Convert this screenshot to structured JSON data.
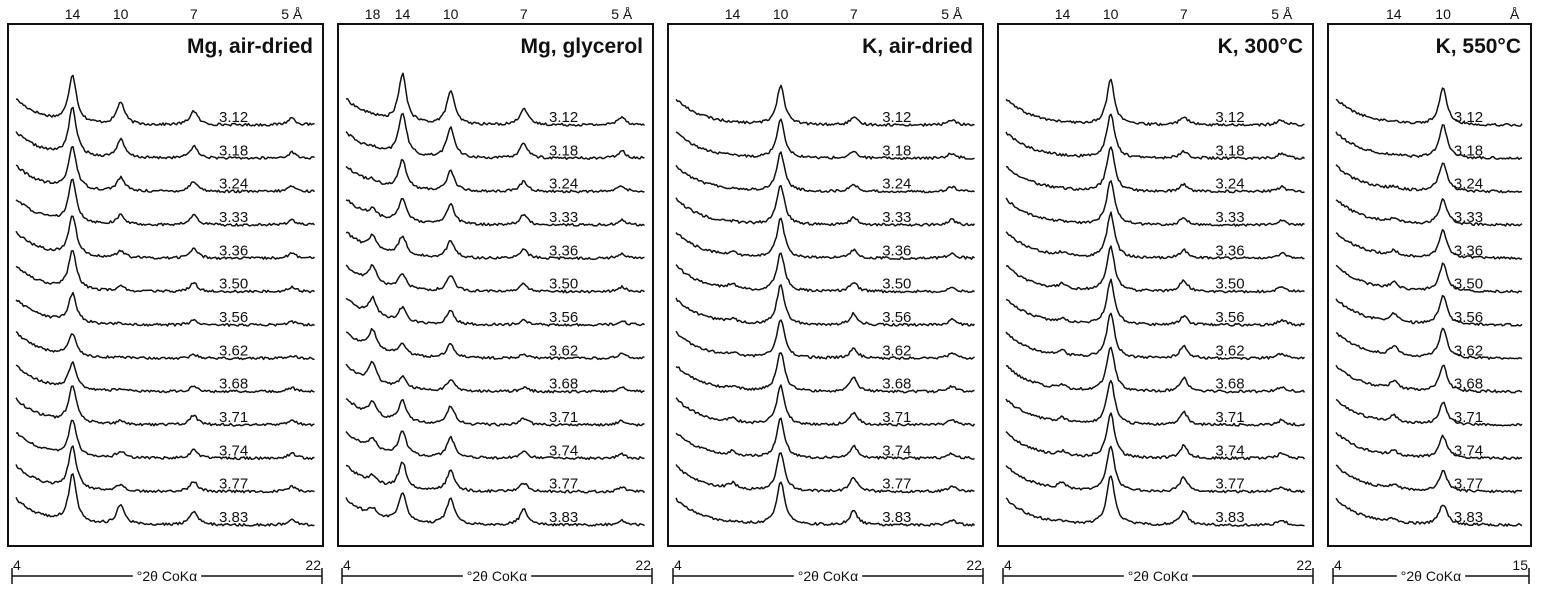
{
  "chart_data": [
    {
      "type": "line",
      "title": "Mg, air-dried",
      "xlabel": "°2θ CoKα",
      "xlim": [
        4,
        22
      ],
      "x_ticks": [
        "4",
        "22"
      ],
      "d_spacing_ticks": [
        {
          "label": "14",
          "x": 7.4
        },
        {
          "label": "10",
          "x": 10.3
        },
        {
          "label": "7",
          "x": 14.7
        }
      ],
      "angstrom_label": "5 Å",
      "angstrom_x": 20.6,
      "peaks": [
        {
          "x": 7.4,
          "h": 1.7
        },
        {
          "x": 10.3,
          "h": 0.8
        },
        {
          "x": 14.7,
          "h": 0.5
        },
        {
          "x": 20.6,
          "h": 0.25
        }
      ],
      "series": [
        {
          "name": "3.12",
          "rel": [
            1.0,
            1.0,
            1.0,
            1.0
          ]
        },
        {
          "name": "3.18",
          "rel": [
            1.0,
            0.8,
            0.85,
            0.85
          ]
        },
        {
          "name": "3.24",
          "rel": [
            0.9,
            0.6,
            0.75,
            0.8
          ]
        },
        {
          "name": "3.33",
          "rel": [
            0.9,
            0.4,
            0.7,
            0.75
          ]
        },
        {
          "name": "3.36",
          "rel": [
            0.85,
            0.3,
            0.7,
            0.7
          ]
        },
        {
          "name": "3.50",
          "rel": [
            0.8,
            0.2,
            0.6,
            0.7
          ]
        },
        {
          "name": "3.56",
          "rel": [
            0.6,
            0.05,
            0.35,
            0.5
          ]
        },
        {
          "name": "3.62",
          "rel": [
            0.45,
            0.05,
            0.25,
            0.4
          ]
        },
        {
          "name": "3.68",
          "rel": [
            0.55,
            0.1,
            0.35,
            0.55
          ]
        },
        {
          "name": "3.71",
          "rel": [
            0.75,
            0.15,
            0.7,
            0.7
          ]
        },
        {
          "name": "3.74",
          "rel": [
            0.75,
            0.3,
            0.6,
            0.7
          ]
        },
        {
          "name": "3.77",
          "rel": [
            0.9,
            0.3,
            0.75,
            0.7
          ]
        },
        {
          "name": "3.83",
          "rel": [
            1.0,
            0.9,
            1.0,
            0.7
          ]
        }
      ]
    },
    {
      "type": "line",
      "title": "Mg, glycerol",
      "xlabel": "°2θ CoKα",
      "xlim": [
        4,
        22
      ],
      "x_ticks": [
        "4",
        "22"
      ],
      "d_spacing_ticks": [
        {
          "label": "18",
          "x": 5.6
        },
        {
          "label": "14",
          "x": 7.4
        },
        {
          "label": "10",
          "x": 10.3
        },
        {
          "label": "7",
          "x": 14.7
        }
      ],
      "angstrom_label": "5 Å",
      "angstrom_x": 20.6,
      "peaks": [
        {
          "x": 5.6,
          "h": 0.8
        },
        {
          "x": 7.4,
          "h": 1.7
        },
        {
          "x": 10.3,
          "h": 1.2
        },
        {
          "x": 14.7,
          "h": 0.6
        },
        {
          "x": 20.6,
          "h": 0.3
        }
      ],
      "series": [
        {
          "name": "3.12",
          "rel": [
            0.05,
            1.0,
            1.0,
            1.0,
            1.0
          ]
        },
        {
          "name": "3.18",
          "rel": [
            0.1,
            0.9,
            0.9,
            0.9,
            0.9
          ]
        },
        {
          "name": "3.24",
          "rel": [
            0.15,
            0.6,
            0.6,
            0.6,
            0.7
          ]
        },
        {
          "name": "3.33",
          "rel": [
            0.3,
            0.5,
            0.6,
            0.6,
            0.6
          ]
        },
        {
          "name": "3.36",
          "rel": [
            0.6,
            0.4,
            0.5,
            0.5,
            0.6
          ]
        },
        {
          "name": "3.50",
          "rel": [
            0.75,
            0.3,
            0.45,
            0.45,
            0.55
          ]
        },
        {
          "name": "3.56",
          "rel": [
            0.8,
            0.3,
            0.4,
            0.3,
            0.5
          ]
        },
        {
          "name": "3.62",
          "rel": [
            0.85,
            0.25,
            0.4,
            0.25,
            0.5
          ]
        },
        {
          "name": "3.68",
          "rel": [
            0.9,
            0.25,
            0.35,
            0.25,
            0.5
          ]
        },
        {
          "name": "3.71",
          "rel": [
            0.6,
            0.45,
            0.55,
            0.4,
            0.5
          ]
        },
        {
          "name": "3.74",
          "rel": [
            0.45,
            0.5,
            0.6,
            0.4,
            0.5
          ]
        },
        {
          "name": "3.77",
          "rel": [
            0.3,
            0.55,
            0.6,
            0.5,
            0.5
          ]
        },
        {
          "name": "3.83",
          "rel": [
            0.35,
            0.6,
            0.8,
            0.9,
            0.5
          ]
        }
      ]
    },
    {
      "type": "line",
      "title": "K, air-dried",
      "xlabel": "°2θ CoKα",
      "xlim": [
        4,
        22
      ],
      "x_ticks": [
        "4",
        "22"
      ],
      "d_spacing_ticks": [
        {
          "label": "14",
          "x": 7.4
        },
        {
          "label": "10",
          "x": 10.3
        },
        {
          "label": "7",
          "x": 14.7
        }
      ],
      "angstrom_label": "5 Å",
      "angstrom_x": 20.6,
      "peaks": [
        {
          "x": 7.4,
          "h": 0.3
        },
        {
          "x": 10.3,
          "h": 1.4
        },
        {
          "x": 14.7,
          "h": 0.5
        },
        {
          "x": 20.6,
          "h": 0.3
        }
      ],
      "series": [
        {
          "name": "3.12",
          "rel": [
            0.0,
            1.0,
            0.5,
            0.6
          ]
        },
        {
          "name": "3.18",
          "rel": [
            0.0,
            1.0,
            0.45,
            0.6
          ]
        },
        {
          "name": "3.24",
          "rel": [
            0.05,
            1.0,
            0.5,
            0.6
          ]
        },
        {
          "name": "3.33",
          "rel": [
            0.1,
            1.0,
            0.5,
            0.6
          ]
        },
        {
          "name": "3.36",
          "rel": [
            0.4,
            1.0,
            0.6,
            0.6
          ]
        },
        {
          "name": "3.50",
          "rel": [
            0.6,
            1.0,
            0.65,
            0.6
          ]
        },
        {
          "name": "3.56",
          "rel": [
            0.45,
            1.0,
            0.8,
            0.6
          ]
        },
        {
          "name": "3.62",
          "rel": [
            0.4,
            1.0,
            0.7,
            0.6
          ]
        },
        {
          "name": "3.68",
          "rel": [
            0.3,
            1.0,
            1.0,
            0.6
          ]
        },
        {
          "name": "3.71",
          "rel": [
            0.5,
            1.0,
            0.9,
            0.6
          ]
        },
        {
          "name": "3.74",
          "rel": [
            0.5,
            1.0,
            0.9,
            0.6
          ]
        },
        {
          "name": "3.77",
          "rel": [
            0.7,
            1.0,
            1.0,
            0.6
          ]
        },
        {
          "name": "3.83",
          "rel": [
            0.1,
            1.1,
            1.0,
            0.6
          ]
        }
      ]
    },
    {
      "type": "line",
      "title": "K, 300°C",
      "xlabel": "°2θ CoKα",
      "xlim": [
        4,
        22
      ],
      "x_ticks": [
        "4",
        "22"
      ],
      "d_spacing_ticks": [
        {
          "label": "14",
          "x": 7.4
        },
        {
          "label": "10",
          "x": 10.3
        },
        {
          "label": "7",
          "x": 14.7
        }
      ],
      "angstrom_label": "5 Å",
      "angstrom_x": 20.6,
      "peaks": [
        {
          "x": 7.4,
          "h": 0.3
        },
        {
          "x": 10.3,
          "h": 1.6
        },
        {
          "x": 14.7,
          "h": 0.5
        },
        {
          "x": 20.6,
          "h": 0.3
        }
      ],
      "series": [
        {
          "name": "3.12",
          "rel": [
            0.0,
            1.0,
            0.6,
            0.6
          ]
        },
        {
          "name": "3.18",
          "rel": [
            0.0,
            1.0,
            0.5,
            0.6
          ]
        },
        {
          "name": "3.24",
          "rel": [
            0.05,
            1.0,
            0.5,
            0.6
          ]
        },
        {
          "name": "3.33",
          "rel": [
            0.1,
            1.0,
            0.5,
            0.6
          ]
        },
        {
          "name": "3.36",
          "rel": [
            0.4,
            1.0,
            0.6,
            0.6
          ]
        },
        {
          "name": "3.50",
          "rel": [
            0.6,
            1.0,
            0.8,
            0.6
          ]
        },
        {
          "name": "3.56",
          "rel": [
            0.5,
            1.0,
            0.6,
            0.6
          ]
        },
        {
          "name": "3.62",
          "rel": [
            0.5,
            1.0,
            0.9,
            0.6
          ]
        },
        {
          "name": "3.68",
          "rel": [
            0.4,
            1.0,
            1.0,
            0.6
          ]
        },
        {
          "name": "3.71",
          "rel": [
            0.5,
            1.0,
            0.9,
            0.6
          ]
        },
        {
          "name": "3.74",
          "rel": [
            0.5,
            1.0,
            0.9,
            0.6
          ]
        },
        {
          "name": "3.77",
          "rel": [
            0.7,
            1.0,
            1.0,
            0.6
          ]
        },
        {
          "name": "3.83",
          "rel": [
            0.1,
            1.1,
            1.0,
            0.6
          ]
        }
      ]
    },
    {
      "type": "line",
      "title": "K, 550°C",
      "xlabel": "°2θ CoKα",
      "xlim": [
        4,
        15
      ],
      "x_ticks": [
        "4",
        "15"
      ],
      "d_spacing_ticks": [
        {
          "label": "14",
          "x": 7.4
        },
        {
          "label": "10",
          "x": 10.3
        }
      ],
      "angstrom_label": "Å",
      "angstrom_x": 14.5,
      "peaks": [
        {
          "x": 7.4,
          "h": 0.45
        },
        {
          "x": 10.3,
          "h": 1.3
        }
      ],
      "series": [
        {
          "name": "3.12",
          "rel": [
            0.1,
            1.0
          ]
        },
        {
          "name": "3.18",
          "rel": [
            0.1,
            0.9
          ]
        },
        {
          "name": "3.24",
          "rel": [
            0.2,
            0.8
          ]
        },
        {
          "name": "3.33",
          "rel": [
            0.3,
            0.7
          ]
        },
        {
          "name": "3.36",
          "rel": [
            0.4,
            0.75
          ]
        },
        {
          "name": "3.50",
          "rel": [
            0.5,
            0.75
          ]
        },
        {
          "name": "3.56",
          "rel": [
            0.7,
            0.8
          ]
        },
        {
          "name": "3.62",
          "rel": [
            0.75,
            0.8
          ]
        },
        {
          "name": "3.68",
          "rel": [
            0.6,
            0.7
          ]
        },
        {
          "name": "3.71",
          "rel": [
            0.5,
            0.6
          ]
        },
        {
          "name": "3.74",
          "rel": [
            0.4,
            0.6
          ]
        },
        {
          "name": "3.77",
          "rel": [
            0.35,
            0.55
          ]
        },
        {
          "name": "3.83",
          "rel": [
            0.3,
            0.55
          ]
        }
      ]
    }
  ]
}
